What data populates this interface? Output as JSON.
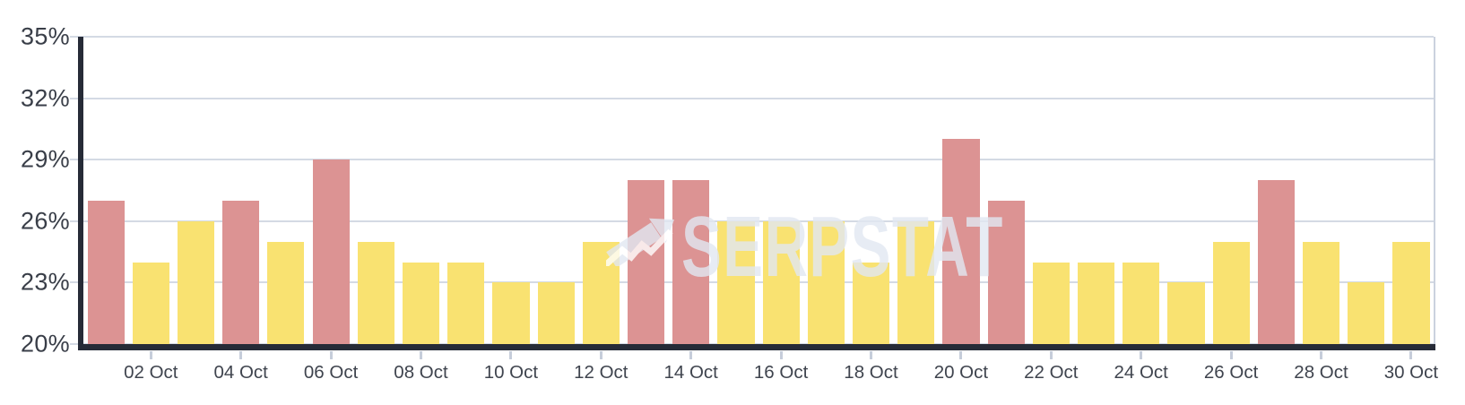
{
  "chart_data": {
    "type": "bar",
    "title": "",
    "xlabel": "",
    "ylabel": "",
    "ylim": [
      20,
      35
    ],
    "y_ticks": [
      35,
      32,
      29,
      26,
      23,
      20
    ],
    "y_tick_labels": [
      "35%",
      "32%",
      "29%",
      "26%",
      "23%",
      "20%"
    ],
    "x_tick_labels": [
      "02 Oct",
      "04 Oct",
      "06 Oct",
      "08 Oct",
      "10 Oct",
      "12 Oct",
      "14 Oct",
      "16 Oct",
      "18 Oct",
      "20 Oct",
      "22 Oct",
      "24 Oct",
      "26 Oct",
      "28 Oct",
      "30 Oct"
    ],
    "categories": [
      "01 Oct",
      "02 Oct",
      "03 Oct",
      "04 Oct",
      "05 Oct",
      "06 Oct",
      "07 Oct",
      "08 Oct",
      "09 Oct",
      "10 Oct",
      "11 Oct",
      "12 Oct",
      "13 Oct",
      "14 Oct",
      "15 Oct",
      "16 Oct",
      "17 Oct",
      "18 Oct",
      "19 Oct",
      "20 Oct",
      "21 Oct",
      "22 Oct",
      "23 Oct",
      "24 Oct",
      "25 Oct",
      "26 Oct",
      "27 Oct",
      "28 Oct",
      "29 Oct",
      "30 Oct"
    ],
    "values": [
      27,
      24,
      26,
      27,
      25,
      29,
      25,
      24,
      24,
      23,
      23,
      25,
      28,
      28,
      26,
      26,
      26,
      24,
      26,
      30,
      27,
      24,
      24,
      24,
      23,
      25,
      28,
      25,
      23,
      25
    ],
    "bar_color_roles": [
      "highlight",
      "default",
      "default",
      "highlight",
      "default",
      "highlight",
      "default",
      "default",
      "default",
      "default",
      "default",
      "default",
      "highlight",
      "highlight",
      "default",
      "default",
      "default",
      "default",
      "default",
      "highlight",
      "highlight",
      "default",
      "default",
      "default",
      "default",
      "default",
      "highlight",
      "default",
      "default",
      "default"
    ],
    "highlighted_days": [
      "01 Oct",
      "04 Oct",
      "06 Oct",
      "13 Oct",
      "14 Oct",
      "20 Oct",
      "21 Oct",
      "27 Oct"
    ],
    "unit": "%",
    "grid": true,
    "legend": "none"
  },
  "watermark": {
    "text": "SERPSTAT",
    "icon": "trend-arrow-icon"
  },
  "colors": {
    "bar_default": "#F9E271",
    "bar_highlight": "#DC9393",
    "gridline": "#D4DAE4",
    "axis": "#262B37",
    "x_tick": "#C6CDDA",
    "label": "#3C414B",
    "watermark": "#E2E8F2",
    "background": "#FFFFFF"
  }
}
